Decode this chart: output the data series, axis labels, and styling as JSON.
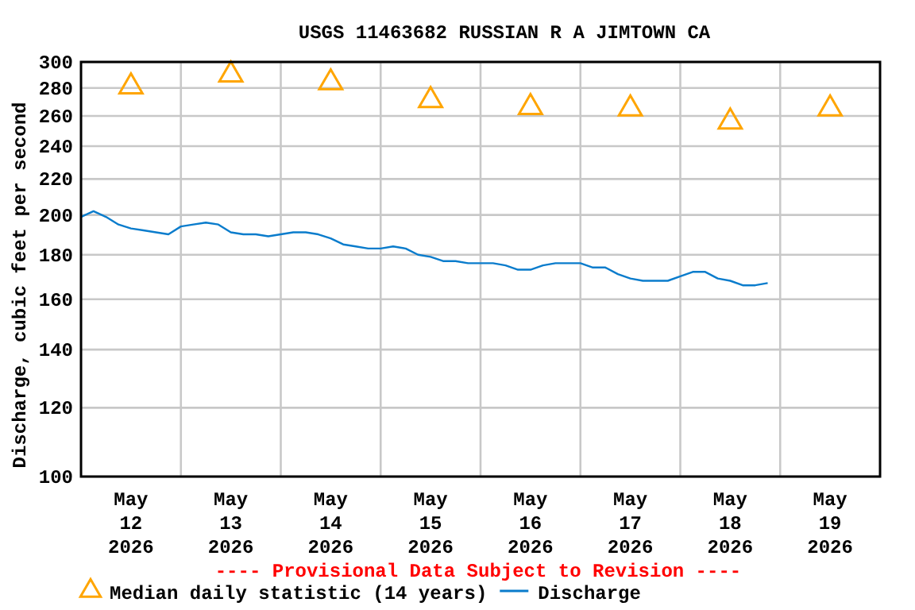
{
  "chart_data": {
    "type": "line",
    "title": "USGS 11463682 RUSSIAN R A JIMTOWN CA",
    "ylabel": "Discharge, cubic feet per second",
    "annotations": [
      "---- Provisional Data Subject to Revision ----"
    ],
    "log": "y",
    "grid": true,
    "legend": "bottom",
    "xlim": [
      "2026-05-12T00:00",
      "2026-05-20T00:00"
    ],
    "xticks": [
      {
        "value": "2026-05-12T12:00",
        "label": "May 12 2026"
      },
      {
        "value": "2026-05-13T12:00",
        "label": "May 13 2026"
      },
      {
        "value": "2026-05-14T12:00",
        "label": "May 14 2026"
      },
      {
        "value": "2026-05-15T12:00",
        "label": "May 15 2026"
      },
      {
        "value": "2026-05-16T12:00",
        "label": "May 16 2026"
      },
      {
        "value": "2026-05-17T12:00",
        "label": "May 17 2026"
      },
      {
        "value": "2026-05-18T12:00",
        "label": "May 18 2026"
      },
      {
        "value": "2026-05-19T12:00",
        "label": "May 19 2026"
      },
      {
        "value": "2026-05-13T00:00",
        "label": null
      },
      {
        "value": "2026-05-14T00:00",
        "label": null
      },
      {
        "value": "2026-05-15T00:00",
        "label": null
      },
      {
        "value": "2026-05-16T00:00",
        "label": null
      },
      {
        "value": "2026-05-17T00:00",
        "label": null
      },
      {
        "value": "2026-05-18T00:00",
        "label": null
      },
      {
        "value": "2026-05-19T00:00",
        "label": null
      }
    ],
    "ylim": [
      100,
      300
    ],
    "yticks": [
      100,
      120,
      140,
      160,
      180,
      200,
      220,
      240,
      260,
      280,
      300
    ],
    "series": [
      {
        "name": "Median daily statistic (14 years)",
        "type": "scatter",
        "marker": "triangle",
        "color": "#ffa500",
        "x": [
          "2026-05-12T12:00",
          "2026-05-13T12:00",
          "2026-05-14T12:00",
          "2026-05-15T12:00",
          "2026-05-16T12:00",
          "2026-05-17T12:00",
          "2026-05-18T12:00",
          "2026-05-19T12:00"
        ],
        "values": [
          281,
          290,
          284,
          271,
          266,
          265,
          256,
          265
        ]
      },
      {
        "name": "Discharge",
        "color": "#0a7ccc",
        "x": [
          "2026-05-12T00:00",
          "2026-05-12T03:00",
          "2026-05-12T06:00",
          "2026-05-12T09:00",
          "2026-05-12T12:00",
          "2026-05-12T15:00",
          "2026-05-12T18:00",
          "2026-05-12T21:00",
          "2026-05-13T00:00",
          "2026-05-13T03:00",
          "2026-05-13T06:00",
          "2026-05-13T09:00",
          "2026-05-13T12:00",
          "2026-05-13T15:00",
          "2026-05-13T18:00",
          "2026-05-13T21:00",
          "2026-05-14T00:00",
          "2026-05-14T03:00",
          "2026-05-14T06:00",
          "2026-05-14T09:00",
          "2026-05-14T12:00",
          "2026-05-14T15:00",
          "2026-05-14T18:00",
          "2026-05-14T21:00",
          "2026-05-15T00:00",
          "2026-05-15T03:00",
          "2026-05-15T06:00",
          "2026-05-15T09:00",
          "2026-05-15T12:00",
          "2026-05-15T15:00",
          "2026-05-15T18:00",
          "2026-05-15T21:00",
          "2026-05-16T00:00",
          "2026-05-16T03:00",
          "2026-05-16T06:00",
          "2026-05-16T09:00",
          "2026-05-16T12:00",
          "2026-05-16T15:00",
          "2026-05-16T18:00",
          "2026-05-16T21:00",
          "2026-05-17T00:00",
          "2026-05-17T03:00",
          "2026-05-17T06:00",
          "2026-05-17T09:00",
          "2026-05-17T12:00",
          "2026-05-17T15:00",
          "2026-05-17T18:00",
          "2026-05-17T21:00",
          "2026-05-18T00:00",
          "2026-05-18T03:00",
          "2026-05-18T06:00",
          "2026-05-18T09:00",
          "2026-05-18T12:00",
          "2026-05-18T15:00",
          "2026-05-18T18:00",
          "2026-05-18T21:00"
        ],
        "values": [
          199,
          202,
          199,
          195,
          193,
          192,
          191,
          190,
          194,
          195,
          196,
          195,
          191,
          190,
          190,
          189,
          190,
          191,
          191,
          190,
          188,
          185,
          184,
          183,
          183,
          184,
          183,
          180,
          179,
          177,
          177,
          176,
          176,
          176,
          175,
          173,
          173,
          175,
          176,
          176,
          176,
          174,
          174,
          171,
          169,
          168,
          168,
          168,
          170,
          172,
          172,
          169,
          168,
          166,
          166,
          167
        ]
      }
    ]
  }
}
